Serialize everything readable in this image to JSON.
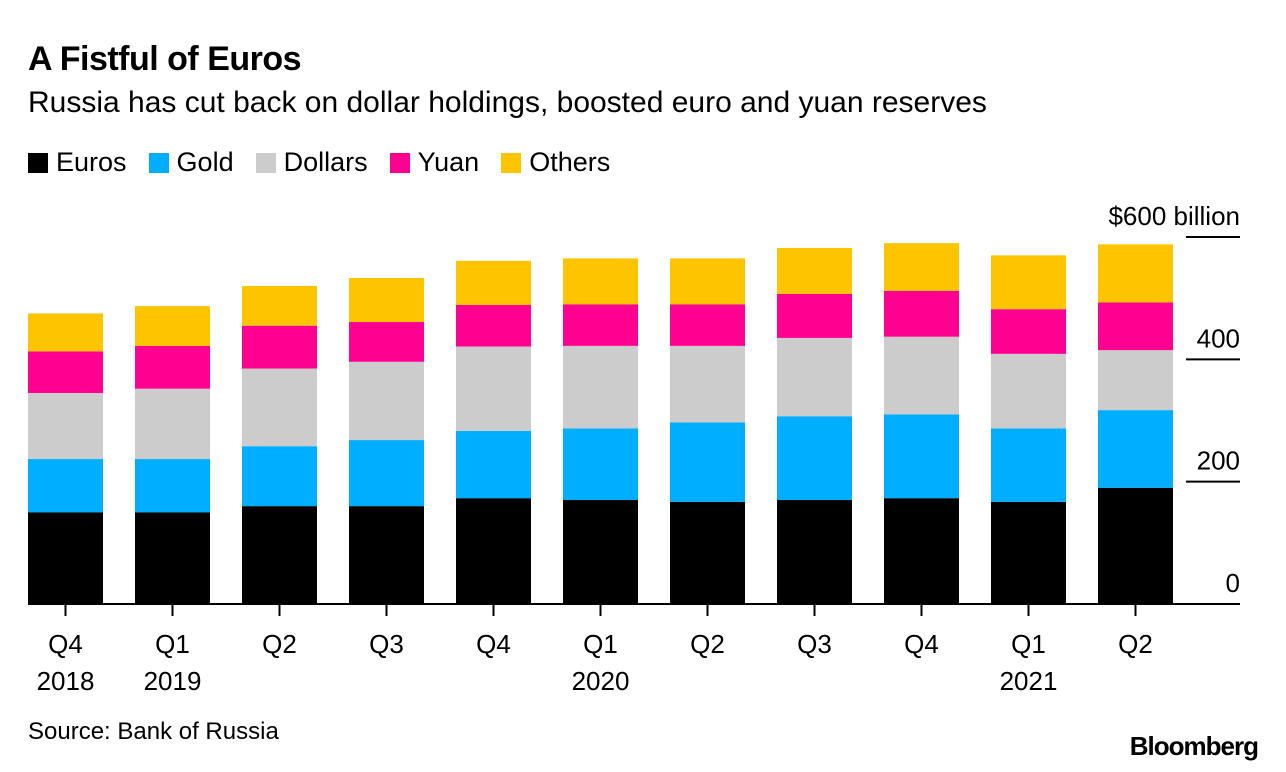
{
  "header": {
    "title": "A Fistful of Euros",
    "subtitle": "Russia has cut back on dollar holdings, boosted euro and yuan reserves"
  },
  "footer": {
    "source": "Source: Bank of Russia",
    "brand": "Bloomberg"
  },
  "chart_data": {
    "type": "bar",
    "stacked": true,
    "title": "A Fistful of Euros",
    "subtitle": "Russia has cut back on dollar holdings, boosted euro and yuan reserves",
    "xlabel": "",
    "ylabel": "",
    "ylim": [
      0,
      600
    ],
    "yticks": [
      {
        "value": 0,
        "label": "0"
      },
      {
        "value": 200,
        "label": "200"
      },
      {
        "value": 400,
        "label": "400"
      },
      {
        "value": 600,
        "label": "$600 billion"
      }
    ],
    "y_axis_side": "right",
    "legend_position": "top-left",
    "grid": false,
    "categories": [
      {
        "quarter": "Q4",
        "year": "2018"
      },
      {
        "quarter": "Q1",
        "year": "2019"
      },
      {
        "quarter": "Q2",
        "year": ""
      },
      {
        "quarter": "Q3",
        "year": ""
      },
      {
        "quarter": "Q4",
        "year": ""
      },
      {
        "quarter": "Q1",
        "year": "2020"
      },
      {
        "quarter": "Q2",
        "year": ""
      },
      {
        "quarter": "Q3",
        "year": ""
      },
      {
        "quarter": "Q4",
        "year": ""
      },
      {
        "quarter": "Q1",
        "year": "2021"
      },
      {
        "quarter": "Q2",
        "year": ""
      }
    ],
    "series": [
      {
        "name": "Euros",
        "color": "#000000",
        "values": [
          150,
          150,
          160,
          160,
          173,
          170,
          167,
          170,
          173,
          167,
          190
        ]
      },
      {
        "name": "Gold",
        "color": "#00aeff",
        "values": [
          87,
          87,
          98,
          108,
          110,
          117,
          130,
          137,
          137,
          120,
          127
        ]
      },
      {
        "name": "Dollars",
        "color": "#cccccc",
        "values": [
          108,
          115,
          127,
          128,
          138,
          135,
          125,
          128,
          127,
          122,
          98
        ]
      },
      {
        "name": "Yuan",
        "color": "#ff0090",
        "values": [
          68,
          70,
          70,
          65,
          68,
          68,
          68,
          72,
          75,
          73,
          78
        ]
      },
      {
        "name": "Others",
        "color": "#ffc400",
        "values": [
          62,
          65,
          65,
          72,
          72,
          75,
          75,
          75,
          78,
          88,
          95
        ]
      }
    ]
  }
}
